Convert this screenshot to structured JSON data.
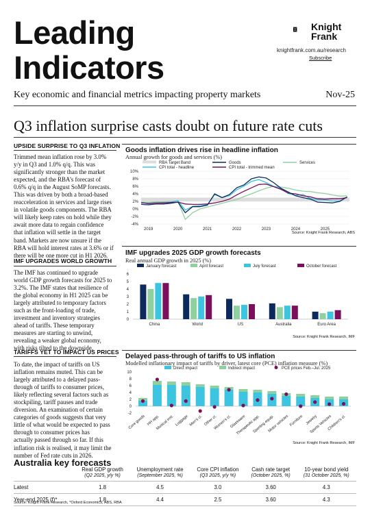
{
  "header": {
    "title_line1": "Leading",
    "title_line2": "Indicators",
    "logo_line1": "Knight",
    "logo_line2": "Frank",
    "url": "knightfrank.com.au/research",
    "subscribe": "Subscribe",
    "subtitle": "Key economic and financial metrics impacting property markets",
    "date": "Nov-25"
  },
  "headline": "Q3 inflation surprise casts doubt on future rate cuts",
  "sections": [
    {
      "heading": "UPSIDE SURPRISE TO Q3 INFLATION",
      "lines": [
        "Trimmed mean inflation rose by 3.0%",
        "y/y in Q3 and 1.0% q/q. This was",
        "significantly stronger than the market",
        "expected, and the RBA’s forecast of",
        "0.6% q/q in the August SoMP forecasts.",
        "This was driven by both a broad-based",
        "reacceleration in services and large rises",
        "in volatile goods components. The RBA",
        "will likely keep rates on hold while they",
        "await more data to regain confidence",
        "that inflation will settle in the target",
        "band. Markets are now unsure if the",
        "RBA will hold interest rates at 3.6% or if",
        "there will be one more cut in H1 2026."
      ]
    },
    {
      "heading": "IMF UPGRADES WORLD GROWTH",
      "lines": [
        "The IMF has continued to upgrade",
        "world GDP growth forecasts for 2025 to",
        "3.2%. The IMF states that resilience of",
        "the global economy in H1 2025 can be",
        "largely attributed to temporary factors",
        "such as the front-loading of trade,",
        "investment and inventory strategies",
        "ahead of tariffs. These temporary",
        "measures are starting to unwind,",
        "revealing a weaker global economy,",
        "with risks tilted to the downside."
      ]
    },
    {
      "heading": "TARIFFS YET TO IMPACT US PRICES",
      "lines": [
        "To date, the impact of tariffs on US",
        "inflation remains muted. This can be",
        "largely attributed to a delayed pass-",
        "through of tariffs to consumer prices,",
        "likely reflecting several factors such as",
        "stockpiling, tariff pauses and trade",
        "diversion. An examination of certain",
        "categories of goods suggests that very",
        "little of what would be expected to pass",
        "through to consumer prices has",
        "actually passed through so far. If this",
        "inflation risk is realised, it may limit the",
        "number of Fed rate cuts in 2026."
      ]
    }
  ],
  "chart1": {
    "title": "Goods inflation drives rise in headline inflation",
    "subtitle": "Annual growth for goods and services (%)",
    "source": "Source: Knight Frank Research, ABS",
    "chart_data": {
      "type": "line",
      "legend": [
        "RBA Target Band",
        "Goods",
        "Services",
        "CPI total - headline",
        "CPI total - trimmed mean"
      ],
      "colors": {
        "band": "#dcdcdc",
        "goods": "#0d2a5e",
        "services": "#8fd19e",
        "headline": "#3cc4e0",
        "trimmed": "#7a0f5c"
      },
      "band": [
        2,
        3
      ],
      "ylim": [
        -4,
        10
      ],
      "yticks": [
        "10%",
        "8%",
        "6%",
        "4%",
        "2%",
        "0%",
        "-2%",
        "-4%"
      ],
      "xticks": [
        "2019",
        "2020",
        "2021",
        "2022",
        "2023",
        "2024",
        "2025"
      ],
      "x": [
        2018.75,
        2019.0,
        2019.25,
        2019.5,
        2019.75,
        2020.0,
        2020.25,
        2020.5,
        2020.75,
        2021.0,
        2021.25,
        2021.5,
        2021.75,
        2022.0,
        2022.25,
        2022.5,
        2022.75,
        2023.0,
        2023.25,
        2023.5,
        2023.75,
        2024.0,
        2024.25,
        2024.5,
        2024.75,
        2025.0,
        2025.25,
        2025.5,
        2025.75
      ],
      "series": [
        {
          "name": "Goods",
          "values": [
            1.2,
            1.1,
            1.3,
            1.3,
            1.5,
            1.8,
            -1.0,
            0.6,
            0.6,
            1.0,
            4.0,
            3.0,
            3.8,
            5.6,
            6.4,
            8.0,
            8.5,
            8.2,
            7.0,
            5.5,
            4.5,
            3.5,
            3.0,
            2.6,
            1.8,
            1.7,
            1.6,
            2.0,
            3.2
          ]
        },
        {
          "name": "Services",
          "values": [
            1.8,
            1.8,
            1.9,
            1.9,
            2.0,
            2.1,
            -2.8,
            -1.0,
            0.0,
            0.5,
            1.0,
            1.5,
            2.0,
            2.5,
            3.3,
            4.0,
            4.8,
            5.5,
            6.0,
            5.8,
            5.5,
            5.0,
            4.7,
            4.6,
            4.3,
            4.1,
            3.7,
            3.4,
            3.5
          ]
        },
        {
          "name": "CPI total - headline",
          "values": [
            1.8,
            1.3,
            1.6,
            1.7,
            1.8,
            2.2,
            -0.3,
            0.7,
            0.9,
            1.1,
            3.8,
            3.0,
            3.5,
            5.1,
            6.1,
            7.3,
            7.8,
            7.0,
            6.0,
            5.4,
            4.1,
            3.6,
            3.8,
            2.8,
            2.4,
            2.4,
            2.1,
            2.1,
            3.2
          ]
        },
        {
          "name": "CPI total - trimmed mean",
          "values": [
            1.6,
            1.5,
            1.6,
            1.6,
            1.7,
            1.8,
            1.3,
            1.2,
            1.2,
            1.3,
            1.6,
            2.0,
            2.6,
            3.7,
            4.7,
            5.6,
            6.5,
            6.6,
            5.9,
            5.2,
            4.2,
            4.0,
            3.5,
            3.2,
            2.7,
            2.6,
            2.7,
            2.7,
            3.0
          ]
        }
      ]
    }
  },
  "chart2": {
    "title": "IMF upgrades 2025 GDP growth forecasts",
    "subtitle": "Real annual GDP growth in 2025 (%)",
    "source": "Source: Knight Frank Research, IMF",
    "chart_data": {
      "type": "bar",
      "categories": [
        "China",
        "World",
        "US",
        "Australia",
        "Euro Area"
      ],
      "ylim": [
        0,
        6
      ],
      "yticks": [
        "6",
        "5",
        "4",
        "3",
        "2",
        "1",
        "0"
      ],
      "series": [
        {
          "name": "January forecast",
          "color": "#0d2a5e",
          "values": [
            4.6,
            3.3,
            2.7,
            2.1,
            1.0
          ]
        },
        {
          "name": "April forecast",
          "color": "#8fd19e",
          "values": [
            4.0,
            2.8,
            1.8,
            1.6,
            0.8
          ]
        },
        {
          "name": "July forecast",
          "color": "#3cc4e0",
          "values": [
            4.8,
            3.0,
            1.9,
            1.8,
            1.0
          ]
        },
        {
          "name": "October forecast",
          "color": "#7a0f5c",
          "values": [
            4.8,
            3.2,
            2.0,
            1.8,
            1.2
          ]
        }
      ]
    }
  },
  "chart3": {
    "title": "Delayed pass-through of tariffs to US inflation",
    "subtitle": "Modelled inflationary impact of tariffs by driver, latest core (PCE) inflation measure (%)",
    "source": "Source: Knight Frank Research, IMF",
    "chart_data": {
      "type": "bar",
      "categories": [
        "Core goods",
        "HH app.",
        "Musical inst.",
        "Luggage",
        "Men's cl.",
        "Other cl.",
        "Women's cl.",
        "Glassware",
        "Therapeutic app.",
        "Sporting equip.",
        "Motor vehicles",
        "Furniture",
        "Jewelry",
        "Sports Vehicles",
        "Children's cl."
      ],
      "ylim": [
        -2,
        10
      ],
      "yticks": [
        "10",
        "8",
        "6",
        "4",
        "2",
        "0",
        "-2"
      ],
      "series": [
        {
          "name": "Direct impact",
          "color": "#3cc4e0",
          "values": [
            1.6,
            6.2,
            6.2,
            6.0,
            5.6,
            5.2,
            4.8,
            4.2,
            4.0,
            3.6,
            3.0,
            2.8,
            2.4,
            2.0,
            2.0
          ]
        },
        {
          "name": "Indirect impact",
          "color": "#8fd19e",
          "values": [
            0.8,
            1.2,
            1.0,
            1.0,
            0.8,
            0.8,
            0.8,
            0.8,
            0.8,
            0.8,
            0.8,
            0.8,
            0.8,
            0.8,
            0.8
          ]
        },
        {
          "name": "PCE prices Feb.–Jul. 2025",
          "color": "#7a0f5c",
          "values": [
            1.5,
            7.8,
            0.2,
            1.5,
            -1.4,
            -0.2,
            4.8,
            0.2,
            1.8,
            2.2,
            3.5,
            0.0,
            1.2,
            0.6,
            0.7
          ]
        }
      ]
    }
  },
  "key_forecasts": {
    "title": "Australia key forecasts",
    "columns": [
      {
        "label": "Real GDP growth",
        "sub": "(Q2 2025, y/y %)"
      },
      {
        "label": "Unemployment rate",
        "sub": "(September 2025, %)"
      },
      {
        "label": "Core CPI inflation",
        "sub": "(Q3 2025, y/y %)"
      },
      {
        "label": "Cash rate target",
        "sub": "(October 2025, %)"
      },
      {
        "label": "10-year bond yield",
        "sub": "(31 October 2025, %)"
      }
    ],
    "rows": [
      {
        "label": "Latest",
        "values": [
          "1.8",
          "4.5",
          "3.0",
          "3.60",
          "4.3"
        ]
      },
      {
        "label": "Year-end 2025 (f)*",
        "values": [
          "1.8",
          "4.4",
          "2.5",
          "3.60",
          "4.3"
        ]
      }
    ],
    "footnote": "Source: Knight Frank Research, *Oxford Economics, ABS, RBA"
  }
}
